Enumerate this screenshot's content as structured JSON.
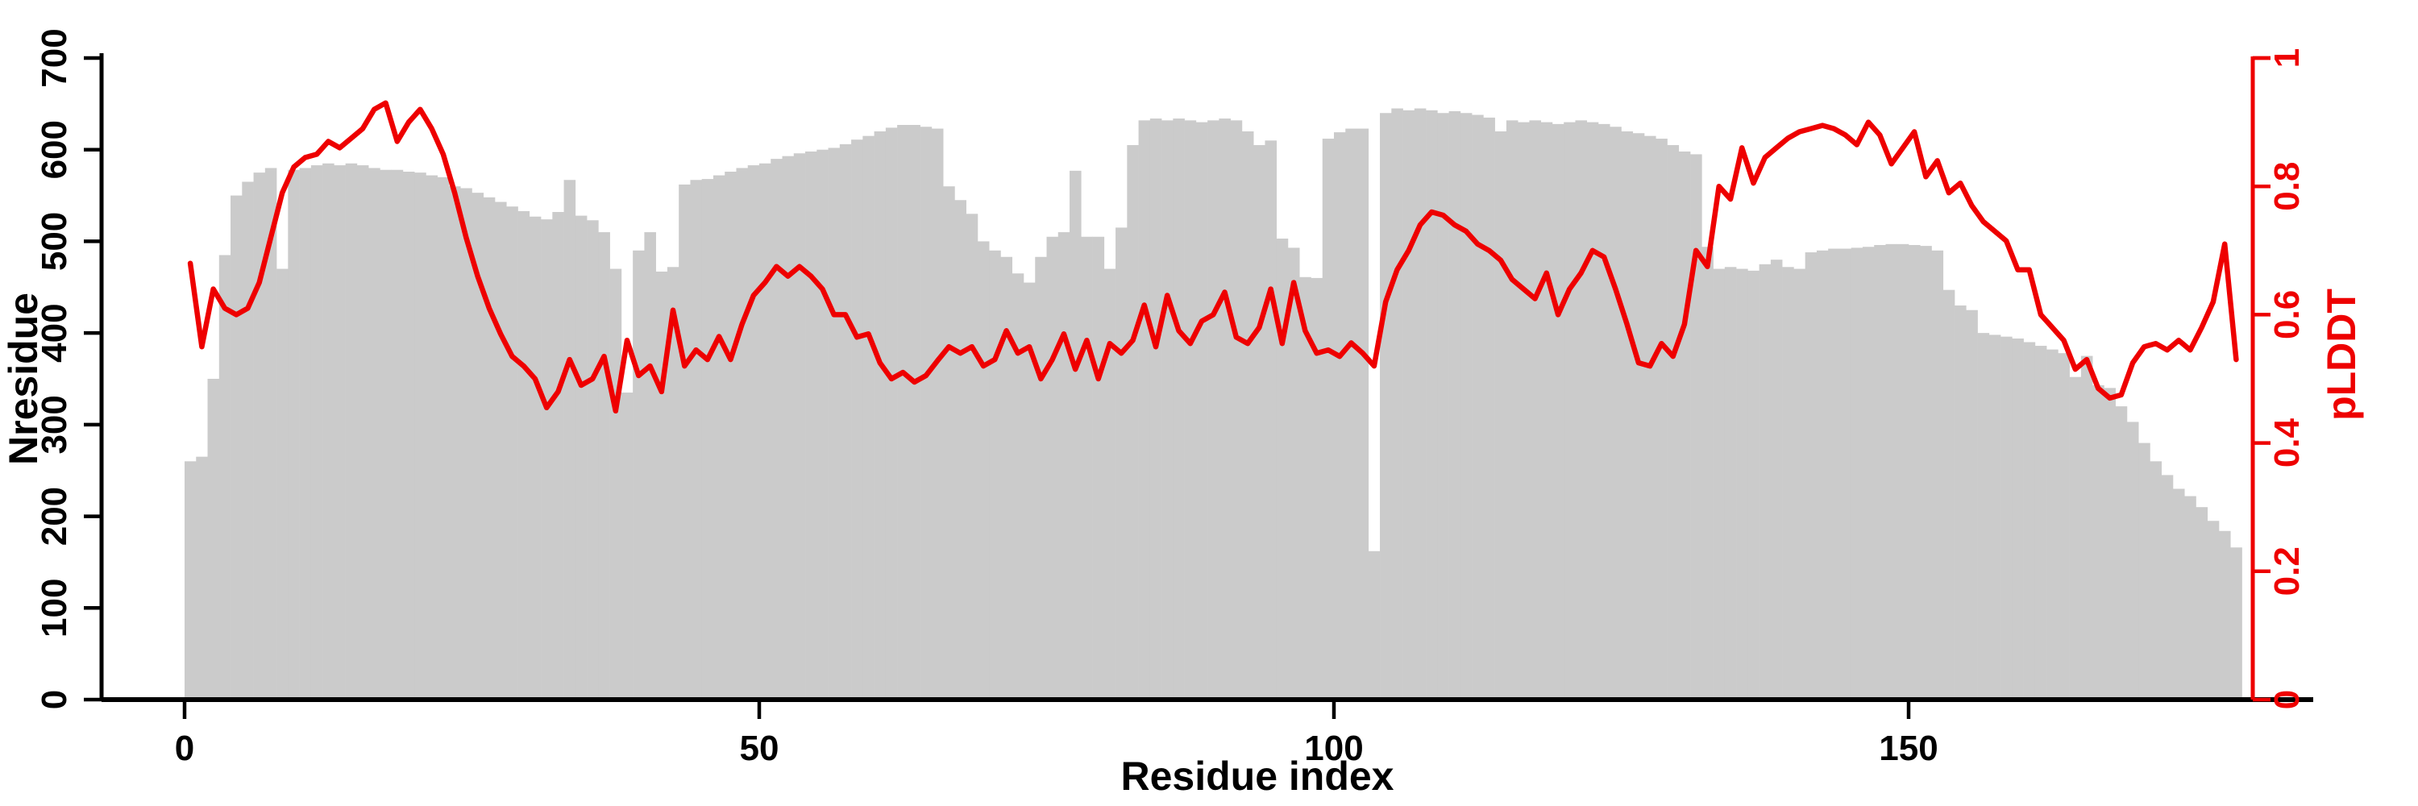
{
  "chart_data": {
    "type": "bar",
    "title": "",
    "xlabel": "Residue index",
    "ylabel_left": "Nresidue",
    "ylabel_right": "pLDDT",
    "x_ticks": [
      0,
      50,
      100,
      150
    ],
    "y_left_ticks": [
      0,
      100,
      200,
      300,
      400,
      500,
      600,
      700
    ],
    "y_left_range": [
      0,
      700
    ],
    "y_right_ticks": [
      "0",
      "0.2",
      "0.4",
      "0.6",
      "0.8",
      "1"
    ],
    "y_right_tick_values": [
      0,
      0.2,
      0.4,
      0.6,
      0.8,
      1
    ],
    "y_right_range": [
      0,
      1
    ],
    "x_range": [
      0,
      185
    ],
    "grid": false,
    "legend_position": "none",
    "bar_color": "#cbcbcb",
    "line_color": "#ee0000",
    "axis_color": "#000000",
    "right_axis_color": "#ee0000",
    "x": "residue index 0..178 (one bar per residue)",
    "series": [
      {
        "name": "Nresidue",
        "type": "bar",
        "axis": "left",
        "values": [
          260,
          265,
          350,
          485,
          550,
          565,
          575,
          580,
          470,
          578,
          580,
          583,
          585,
          583,
          585,
          583,
          580,
          578,
          578,
          576,
          575,
          572,
          570,
          560,
          558,
          553,
          548,
          543,
          538,
          533,
          527,
          524,
          532,
          567,
          528,
          523,
          510,
          470,
          335,
          490,
          510,
          467,
          472,
          562,
          567,
          568,
          572,
          576,
          580,
          583,
          585,
          590,
          593,
          596,
          598,
          600,
          602,
          606,
          611,
          615,
          620,
          624,
          627,
          627,
          625,
          623,
          560,
          545,
          530,
          500,
          490,
          483,
          465,
          455,
          483,
          505,
          510,
          577,
          505,
          505,
          470,
          515,
          605,
          632,
          634,
          632,
          634,
          632,
          630,
          632,
          634,
          632,
          620,
          605,
          610,
          503,
          493,
          461,
          460,
          612,
          619,
          623,
          623,
          162,
          640,
          645,
          643,
          645,
          643,
          640,
          642,
          640,
          638,
          635,
          620,
          632,
          630,
          632,
          630,
          628,
          630,
          632,
          630,
          628,
          625,
          620,
          618,
          615,
          612,
          605,
          598,
          595,
          494,
          470,
          472,
          470,
          468,
          475,
          480,
          472,
          470,
          488,
          490,
          492,
          492,
          493,
          494,
          496,
          497,
          497,
          496,
          495,
          490,
          447,
          430,
          425,
          400,
          398,
          396,
          394,
          390,
          386,
          382,
          378,
          352,
          375,
          343,
          340,
          320,
          303,
          280,
          260,
          245,
          230,
          222,
          210,
          195,
          184,
          166
        ]
      },
      {
        "name": "pLDDT",
        "type": "line",
        "axis": "right",
        "values": [
          0.68,
          0.55,
          0.64,
          0.61,
          0.6,
          0.61,
          0.65,
          0.72,
          0.79,
          0.83,
          0.845,
          0.85,
          0.87,
          0.86,
          0.875,
          0.89,
          0.92,
          0.93,
          0.87,
          0.9,
          0.92,
          0.89,
          0.85,
          0.79,
          0.72,
          0.66,
          0.61,
          0.57,
          0.535,
          0.52,
          0.5,
          0.455,
          0.48,
          0.53,
          0.49,
          0.5,
          0.535,
          0.45,
          0.56,
          0.505,
          0.52,
          0.48,
          0.607,
          0.52,
          0.545,
          0.53,
          0.566,
          0.53,
          0.585,
          0.63,
          0.65,
          0.675,
          0.66,
          0.675,
          0.66,
          0.64,
          0.6,
          0.6,
          0.565,
          0.57,
          0.525,
          0.5,
          0.51,
          0.495,
          0.505,
          0.528,
          0.55,
          0.54,
          0.55,
          0.52,
          0.53,
          0.575,
          0.54,
          0.55,
          0.5,
          0.53,
          0.57,
          0.515,
          0.56,
          0.5,
          0.555,
          0.54,
          0.56,
          0.615,
          0.55,
          0.63,
          0.575,
          0.555,
          0.59,
          0.6,
          0.635,
          0.565,
          0.555,
          0.58,
          0.64,
          0.555,
          0.65,
          0.575,
          0.54,
          0.545,
          0.535,
          0.556,
          0.54,
          0.52,
          0.62,
          0.67,
          0.7,
          0.74,
          0.76,
          0.755,
          0.74,
          0.73,
          0.71,
          0.7,
          0.685,
          0.655,
          0.64,
          0.625,
          0.665,
          0.6,
          0.64,
          0.665,
          0.7,
          0.69,
          0.64,
          0.585,
          0.525,
          0.52,
          0.555,
          0.535,
          0.585,
          0.7,
          0.675,
          0.8,
          0.78,
          0.86,
          0.805,
          0.845,
          0.86,
          0.875,
          0.885,
          0.89,
          0.895,
          0.89,
          0.88,
          0.865,
          0.9,
          0.88,
          0.835,
          0.86,
          0.885,
          0.815,
          0.84,
          0.79,
          0.805,
          0.77,
          0.745,
          0.73,
          0.715,
          0.67,
          0.67,
          0.6,
          0.58,
          0.56,
          0.515,
          0.53,
          0.485,
          0.47,
          0.475,
          0.525,
          0.55,
          0.555,
          0.545,
          0.56,
          0.545,
          0.58,
          0.62,
          0.71,
          0.53
        ]
      }
    ]
  }
}
